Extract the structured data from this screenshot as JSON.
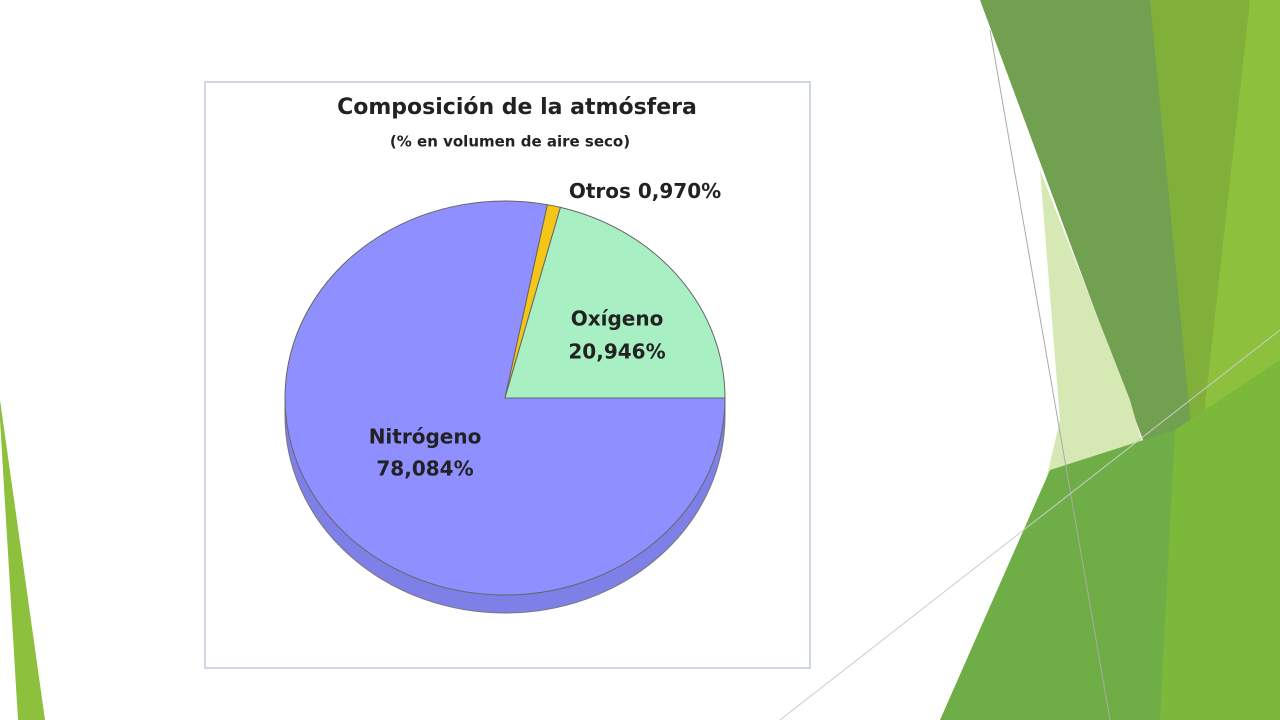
{
  "chart_data": {
    "type": "pie",
    "title": "Composición de la atmósfera",
    "subtitle": "(% en volumen de aire seco)",
    "categories": [
      "Nitrógeno",
      "Otros",
      "Oxígeno"
    ],
    "values": [
      78.084,
      0.97,
      20.946
    ],
    "value_labels": [
      "78,084%",
      "0,970%",
      "20,946%"
    ],
    "colors": [
      "#8f8fff",
      "#f5c518",
      "#a8f0c4"
    ]
  }
}
